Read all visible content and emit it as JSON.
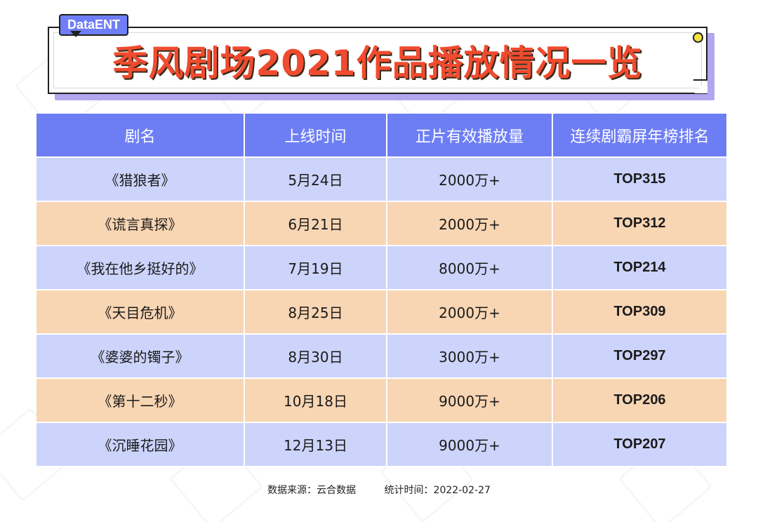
{
  "tag": "DataENT",
  "title": "季风剧场2021作品播放情况一览",
  "table": {
    "headers": [
      "剧名",
      "上线时间",
      "正片有效播放量",
      "连续剧霸屏年榜排名"
    ],
    "rows": [
      {
        "name": "《猎狼者》",
        "date": "5月24日",
        "plays": "2000万+",
        "rank": "TOP315"
      },
      {
        "name": "《谎言真探》",
        "date": "6月21日",
        "plays": "2000万+",
        "rank": "TOP312"
      },
      {
        "name": "《我在他乡挺好的》",
        "date": "7月19日",
        "plays": "8000万+",
        "rank": "TOP214"
      },
      {
        "name": "《天目危机》",
        "date": "8月25日",
        "plays": "2000万+",
        "rank": "TOP309"
      },
      {
        "name": "《婆婆的镯子》",
        "date": "8月30日",
        "plays": "3000万+",
        "rank": "TOP297"
      },
      {
        "name": "《第十二秒》",
        "date": "10月18日",
        "plays": "9000万+",
        "rank": "TOP206"
      },
      {
        "name": "《沉睡花园》",
        "date": "12月13日",
        "plays": "9000万+",
        "rank": "TOP207"
      }
    ]
  },
  "footer": {
    "source": "数据来源：云合数据",
    "stat_time": "统计时间：2022-02-27"
  },
  "colors": {
    "header_bg": "#6d7ef5",
    "row_blue": "#cdd4fb",
    "row_orange": "#f8d5b3",
    "title_red": "#f04b2e",
    "shadow_purple": "#b2a6ef"
  }
}
